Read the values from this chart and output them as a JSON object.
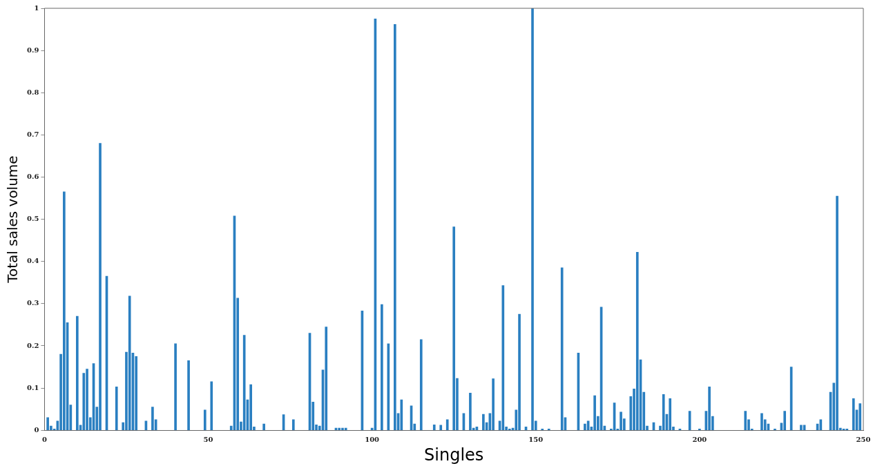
{
  "chart_data": {
    "type": "bar",
    "xlabel": "Singles",
    "ylabel": "Total sales volume",
    "color": "#2a7fc1",
    "x": [
      1,
      2,
      3,
      4,
      5,
      6,
      7,
      8,
      10,
      11,
      12,
      13,
      14,
      15,
      16,
      17,
      19,
      22,
      24,
      25,
      26,
      27,
      28,
      31,
      33,
      34,
      40,
      44,
      49,
      51,
      57,
      58,
      59,
      60,
      61,
      62,
      63,
      64,
      67,
      73,
      76,
      81,
      82,
      83,
      84,
      85,
      86,
      89,
      90,
      91,
      92,
      97,
      100,
      101,
      103,
      105,
      107,
      108,
      109,
      112,
      113,
      115,
      119,
      121,
      123,
      125,
      126,
      128,
      130,
      131,
      132,
      134,
      135,
      136,
      137,
      139,
      140,
      141,
      142,
      143,
      144,
      145,
      147,
      149,
      150,
      152,
      154,
      158,
      159,
      163,
      165,
      166,
      167,
      168,
      169,
      170,
      171,
      173,
      174,
      175,
      176,
      177,
      179,
      180,
      181,
      182,
      183,
      184,
      186,
      188,
      189,
      190,
      191,
      192,
      194,
      197,
      200,
      202,
      203,
      204,
      214,
      215,
      216,
      219,
      220,
      221,
      223,
      225,
      226,
      228,
      231,
      232,
      236,
      237,
      240,
      241,
      242,
      243,
      244,
      245,
      247,
      248,
      249
    ],
    "values": [
      0.03,
      0.01,
      0.003,
      0.022,
      0.18,
      0.565,
      0.255,
      0.06,
      0.27,
      0.012,
      0.135,
      0.145,
      0.03,
      0.158,
      0.055,
      0.68,
      0.365,
      0.103,
      0.018,
      0.185,
      0.318,
      0.183,
      0.175,
      0.022,
      0.055,
      0.025,
      0.205,
      0.165,
      0.048,
      0.115,
      0.01,
      0.508,
      0.313,
      0.02,
      0.225,
      0.072,
      0.108,
      0.008,
      0.015,
      0.037,
      0.025,
      0.23,
      0.067,
      0.013,
      0.01,
      0.143,
      0.245,
      0.005,
      0.005,
      0.005,
      0.005,
      0.283,
      0.005,
      0.975,
      0.298,
      0.205,
      0.962,
      0.04,
      0.072,
      0.058,
      0.015,
      0.215,
      0.013,
      0.012,
      0.025,
      0.482,
      0.123,
      0.04,
      0.088,
      0.005,
      0.008,
      0.038,
      0.018,
      0.04,
      0.122,
      0.022,
      0.343,
      0.008,
      0.003,
      0.005,
      0.048,
      0.275,
      0.008,
      1.0,
      0.022,
      0.003,
      0.003,
      0.385,
      0.03,
      0.183,
      0.015,
      0.022,
      0.008,
      0.082,
      0.033,
      0.292,
      0.01,
      0.003,
      0.065,
      0.003,
      0.043,
      0.027,
      0.08,
      0.098,
      0.422,
      0.167,
      0.09,
      0.01,
      0.018,
      0.01,
      0.085,
      0.038,
      0.075,
      0.008,
      0.003,
      0.045,
      0.003,
      0.045,
      0.103,
      0.033,
      0.045,
      0.025,
      0.003,
      0.04,
      0.025,
      0.015,
      0.003,
      0.017,
      0.045,
      0.15,
      0.012,
      0.012,
      0.015,
      0.025,
      0.09,
      0.112,
      0.555,
      0.005,
      0.003,
      0.003,
      0.075,
      0.048,
      0.063
    ],
    "xlim": [
      0,
      250
    ],
    "xticks": [
      0,
      50,
      100,
      150,
      200,
      250
    ],
    "ylim": [
      0,
      1
    ],
    "yticks": [
      0,
      0.1,
      0.2,
      0.3,
      0.4,
      0.5,
      0.6,
      0.7,
      0.8,
      0.9,
      1
    ],
    "grid": false,
    "legend": false
  }
}
